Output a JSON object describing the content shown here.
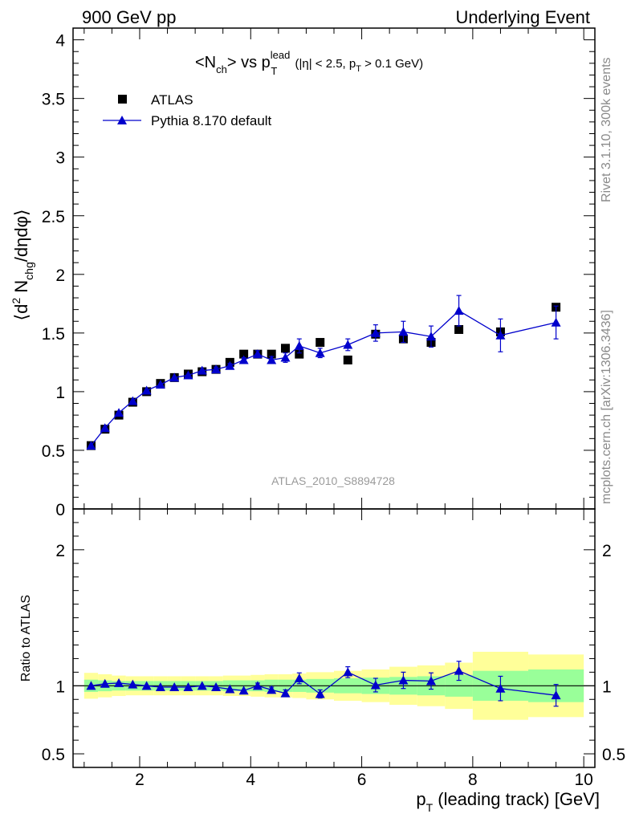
{
  "header": {
    "left": "900 GeV pp",
    "right": "Underlying Event"
  },
  "side_text": {
    "rivet": "Rivet 3.1.10,  300k events",
    "mcplots": "mcplots.cern.ch [arXiv:1306.3436]"
  },
  "colors": {
    "data": "#000000",
    "mc": "#0000cc",
    "band_inner": "#99ff99",
    "band_outer": "#ffff99"
  },
  "chart_data": [
    {
      "type": "scatter",
      "panel": "main",
      "title": {
        "main": "<N",
        "sub1": "ch",
        "mid": "> vs p",
        "sup": "lead",
        "sub2": "T",
        "cut1": " (|η| < 2.5, p",
        "cut_sub": "T",
        "cut2": " > 0.1 GeV)"
      },
      "ylabel": {
        "pre": "⟨d",
        "sup": "2",
        "mid": " N",
        "sub": "chg",
        "post": "/dηdφ⟩"
      },
      "analysis_label": "ATLAS_2010_S8894728",
      "xlim": [
        0.8,
        10.2
      ],
      "ylim": [
        0,
        4.1
      ],
      "yticks": [
        0,
        0.5,
        1,
        1.5,
        2,
        2.5,
        3,
        3.5,
        4
      ],
      "ytick_labels": [
        "0",
        "0.5",
        "1",
        "1.5",
        "2",
        "2.5",
        "3",
        "3.5",
        "4"
      ],
      "legend_position": "top-left",
      "series": [
        {
          "name": "ATLAS",
          "marker": "square",
          "x": [
            1.125,
            1.375,
            1.625,
            1.875,
            2.125,
            2.375,
            2.625,
            2.875,
            3.125,
            3.375,
            3.625,
            3.875,
            4.125,
            4.375,
            4.625,
            4.875,
            5.25,
            5.75,
            6.25,
            6.75,
            7.25,
            7.75,
            8.5,
            9.5
          ],
          "y": [
            0.54,
            0.68,
            0.8,
            0.91,
            1.0,
            1.07,
            1.12,
            1.15,
            1.17,
            1.19,
            1.25,
            1.32,
            1.32,
            1.32,
            1.37,
            1.32,
            1.42,
            1.27,
            1.49,
            1.45,
            1.42,
            1.53,
            1.51,
            1.72
          ]
        },
        {
          "name": "Pythia 8.170 default",
          "marker": "triangle",
          "x": [
            1.125,
            1.375,
            1.625,
            1.875,
            2.125,
            2.375,
            2.625,
            2.875,
            3.125,
            3.375,
            3.625,
            3.875,
            4.125,
            4.375,
            4.625,
            4.875,
            5.25,
            5.75,
            6.25,
            6.75,
            7.25,
            7.75,
            8.5,
            9.5
          ],
          "y": [
            0.54,
            0.69,
            0.82,
            0.92,
            1.01,
            1.06,
            1.12,
            1.14,
            1.18,
            1.19,
            1.22,
            1.27,
            1.32,
            1.27,
            1.29,
            1.39,
            1.33,
            1.4,
            1.5,
            1.51,
            1.47,
            1.69,
            1.48,
            1.59
          ],
          "err": [
            0.01,
            0.01,
            0.01,
            0.01,
            0.01,
            0.01,
            0.01,
            0.01,
            0.01,
            0.02,
            0.02,
            0.02,
            0.03,
            0.03,
            0.04,
            0.06,
            0.04,
            0.05,
            0.07,
            0.09,
            0.09,
            0.13,
            0.14,
            0.14
          ]
        }
      ]
    },
    {
      "type": "scatter",
      "panel": "ratio",
      "ylabel": "Ratio to ATLAS",
      "xlabel": {
        "pre": "p",
        "sub": "T",
        "post": " (leading track) [GeV]"
      },
      "xlim": [
        0.8,
        10.2
      ],
      "ylim": [
        0.4,
        2.3
      ],
      "xticks": [
        2,
        4,
        6,
        8,
        10
      ],
      "xtick_labels": [
        "2",
        "4",
        "6",
        "8",
        "10"
      ],
      "yticks": [
        0.5,
        1,
        2
      ],
      "ytick_labels": [
        "0.5",
        "1",
        "2"
      ],
      "bands": {
        "edges": [
          1.0,
          1.25,
          1.5,
          1.75,
          2.0,
          2.25,
          2.5,
          2.75,
          3.0,
          3.25,
          3.5,
          3.75,
          4.0,
          4.25,
          4.5,
          4.75,
          5.0,
          5.5,
          6.0,
          6.5,
          7.0,
          7.5,
          8.0,
          9.0,
          10.0
        ],
        "inner": [
          0.045,
          0.04,
          0.035,
          0.035,
          0.035,
          0.035,
          0.035,
          0.035,
          0.035,
          0.035,
          0.04,
          0.04,
          0.04,
          0.045,
          0.045,
          0.045,
          0.05,
          0.055,
          0.06,
          0.065,
          0.07,
          0.08,
          0.11,
          0.12
        ],
        "outer": [
          0.095,
          0.085,
          0.075,
          0.07,
          0.07,
          0.07,
          0.07,
          0.07,
          0.07,
          0.07,
          0.075,
          0.075,
          0.08,
          0.085,
          0.085,
          0.09,
          0.1,
          0.11,
          0.12,
          0.14,
          0.15,
          0.17,
          0.25,
          0.23
        ]
      },
      "series": [
        {
          "name": "Pythia 8.170 default",
          "x": [
            1.125,
            1.375,
            1.625,
            1.875,
            2.125,
            2.375,
            2.625,
            2.875,
            3.125,
            3.375,
            3.625,
            3.875,
            4.125,
            4.375,
            4.625,
            4.875,
            5.25,
            5.75,
            6.25,
            6.75,
            7.25,
            7.75,
            8.5,
            9.5
          ],
          "y": [
            1.0,
            1.015,
            1.02,
            1.01,
            1.0,
            0.99,
            0.99,
            0.99,
            1.0,
            0.99,
            0.975,
            0.965,
            1.0,
            0.97,
            0.945,
            1.055,
            0.94,
            1.1,
            1.005,
            1.04,
            1.035,
            1.11,
            0.98,
            0.93
          ],
          "err": [
            0.01,
            0.01,
            0.01,
            0.01,
            0.01,
            0.01,
            0.01,
            0.01,
            0.01,
            0.01,
            0.015,
            0.015,
            0.02,
            0.02,
            0.025,
            0.04,
            0.03,
            0.04,
            0.05,
            0.06,
            0.06,
            0.07,
            0.09,
            0.08
          ]
        }
      ]
    }
  ]
}
